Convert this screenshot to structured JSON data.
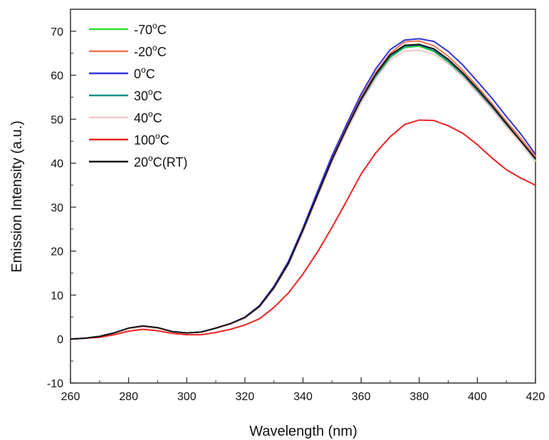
{
  "chart_data": {
    "type": "line",
    "xlabel": "Wavelength (nm)",
    "ylabel": "Emission Intensity (a.u.)",
    "xlim": [
      260,
      420
    ],
    "ylim": [
      -10,
      75
    ],
    "x_ticks": [
      260,
      280,
      300,
      320,
      340,
      360,
      380,
      400,
      420
    ],
    "y_ticks": [
      -10,
      0,
      10,
      20,
      30,
      40,
      50,
      60,
      70
    ],
    "grid": false,
    "legend_position": "top-left",
    "x": [
      260,
      265,
      270,
      275,
      280,
      285,
      290,
      295,
      300,
      305,
      310,
      315,
      320,
      325,
      330,
      335,
      340,
      345,
      350,
      355,
      360,
      365,
      370,
      375,
      380,
      385,
      390,
      395,
      400,
      405,
      410,
      415,
      420
    ],
    "series": [
      {
        "name": "-70",
        "superscript": "o",
        "suffix": "C",
        "color": "#33dd33",
        "values": [
          0,
          0.2,
          0.6,
          1.4,
          2.4,
          2.8,
          2.5,
          1.6,
          1.4,
          1.6,
          2.4,
          3.4,
          4.8,
          7.3,
          11.5,
          17,
          24.5,
          32.5,
          40.5,
          47.5,
          54,
          59.5,
          64,
          66.3,
          66.6,
          65.4,
          63,
          60,
          56.3,
          52.5,
          48.3,
          44.5,
          40.3
        ]
      },
      {
        "name": "-20",
        "superscript": "o",
        "suffix": "C",
        "color": "#ee7755",
        "values": [
          0,
          0.2,
          0.6,
          1.4,
          2.4,
          2.9,
          2.6,
          1.7,
          1.4,
          1.6,
          2.5,
          3.5,
          4.9,
          7.5,
          11.8,
          17.4,
          25,
          33,
          41,
          48.2,
          55,
          60.6,
          65,
          67.6,
          67.8,
          66.7,
          64.3,
          61.1,
          57.4,
          53.6,
          49.5,
          45.6,
          41.5
        ]
      },
      {
        "name": "0",
        "superscript": "o",
        "suffix": "C",
        "color": "#3333dd",
        "values": [
          0,
          0.2,
          0.6,
          1.4,
          2.4,
          2.9,
          2.6,
          1.7,
          1.4,
          1.6,
          2.5,
          3.5,
          5,
          7.6,
          12,
          17.7,
          25.3,
          33.6,
          41.7,
          48.8,
          55.7,
          61.4,
          65.8,
          68,
          68.3,
          67.7,
          65.4,
          62.3,
          58.6,
          54.8,
          50.6,
          46.6,
          42
        ]
      },
      {
        "name": "30",
        "superscript": "o",
        "suffix": "C",
        "color": "#1a8f8a",
        "values": [
          0,
          0.2,
          0.6,
          1.4,
          2.4,
          2.8,
          2.5,
          1.6,
          1.4,
          1.6,
          2.4,
          3.4,
          4.8,
          7.3,
          11.5,
          17,
          24.5,
          32.6,
          40.6,
          47.6,
          54.2,
          59.8,
          64.2,
          66.5,
          66.8,
          65.6,
          63.2,
          60.1,
          56.4,
          52.6,
          48.5,
          44.7,
          40.5
        ]
      },
      {
        "name": "40",
        "superscript": "o",
        "suffix": "C",
        "color": "#f0c8cc",
        "values": [
          0,
          0.2,
          0.6,
          1.3,
          2.3,
          2.7,
          2.4,
          1.6,
          1.4,
          1.6,
          2.4,
          3.3,
          4.7,
          7.2,
          11.3,
          16.8,
          24.2,
          32.2,
          40.2,
          47.2,
          53.7,
          59.2,
          63.5,
          65.5,
          65.7,
          64.8,
          62.6,
          59.6,
          56,
          52.3,
          48.3,
          44.5,
          40.4
        ]
      },
      {
        "name": "100",
        "superscript": "o",
        "suffix": "C",
        "color": "#ee2222",
        "values": [
          0,
          0.2,
          0.4,
          1,
          1.8,
          2.2,
          1.9,
          1.3,
          1,
          1,
          1.5,
          2.2,
          3.2,
          4.6,
          7.2,
          10.5,
          14.8,
          19.8,
          25.4,
          31.4,
          37.5,
          42.3,
          46,
          48.8,
          49.8,
          49.7,
          48.5,
          46.8,
          44.2,
          41.2,
          38.5,
          36.6,
          35
        ]
      },
      {
        "name": "20",
        "superscript": "o",
        "suffix": "C(RT)",
        "color": "#111111",
        "values": [
          0,
          0.2,
          0.6,
          1.4,
          2.5,
          3,
          2.6,
          1.7,
          1.4,
          1.6,
          2.5,
          3.5,
          4.9,
          7.4,
          11.7,
          17.2,
          24.8,
          32.8,
          40.8,
          47.9,
          54.6,
          60.2,
          64.6,
          66.8,
          67,
          66,
          63.6,
          60.5,
          56.9,
          53.1,
          49,
          45,
          41
        ]
      }
    ]
  }
}
